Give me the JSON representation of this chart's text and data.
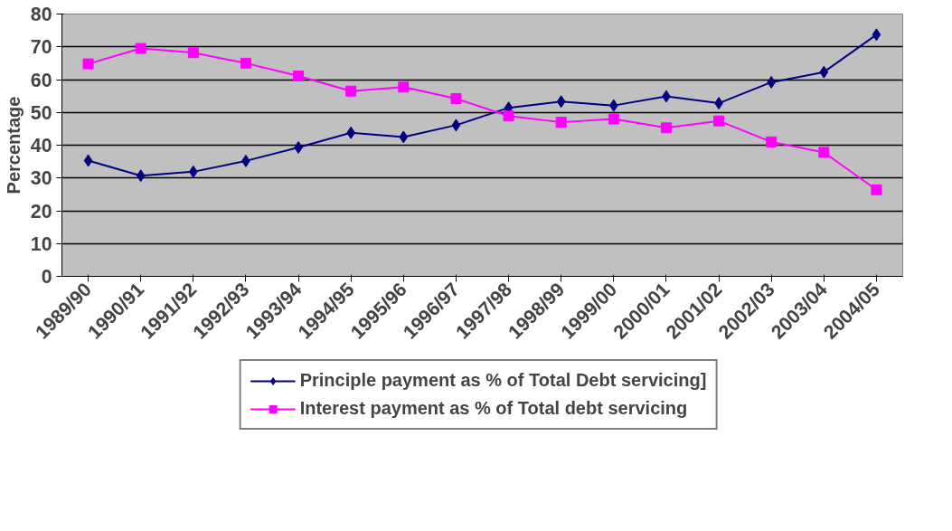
{
  "chart_data": {
    "type": "line",
    "ylabel": "Percentage",
    "categories": [
      "1989/90",
      "1990/91",
      "1991/92",
      "1992/93",
      "1993/94",
      "1994/95",
      "1995/96",
      "1996/97",
      "1997/98",
      "1998/99",
      "1999/00",
      "2000/01",
      "2001/02",
      "2002/03",
      "2003/04",
      "2004/05"
    ],
    "series": [
      {
        "name": "Principle payment as % of Total Debt servicing]",
        "color": "#000080",
        "marker": "diamond",
        "values": [
          35.3,
          30.7,
          31.9,
          35.2,
          39.3,
          43.8,
          42.5,
          46.1,
          51.4,
          53.3,
          52.1,
          54.9,
          52.8,
          59.2,
          62.3,
          73.7
        ]
      },
      {
        "name": "Interest payment as % of Total debt servicing",
        "color": "#ff00ff",
        "marker": "square",
        "values": [
          64.8,
          69.5,
          68.2,
          65.0,
          61.1,
          56.5,
          57.7,
          54.2,
          48.9,
          47.0,
          48.0,
          45.3,
          47.4,
          41.0,
          37.8,
          26.4
        ]
      }
    ],
    "ylim": [
      0,
      80
    ],
    "yticks": [
      0,
      10,
      20,
      30,
      40,
      50,
      60,
      70,
      80
    ],
    "grid": "y",
    "legend": "bottom",
    "line_style": "solid"
  }
}
